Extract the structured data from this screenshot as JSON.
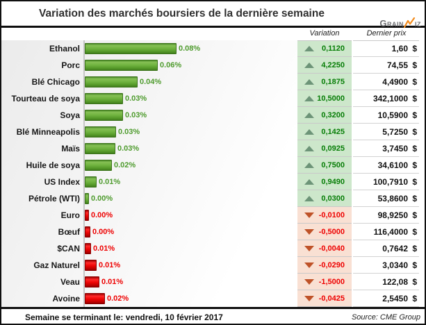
{
  "title": "Variation des marchés boursiers de la dernière semaine",
  "logo": {
    "text_left": "Grain",
    "text_right": "iz",
    "accent_color": "#F28C1E",
    "text_color": "#6D6E71"
  },
  "table": {
    "headers": {
      "variation": "Variation",
      "last_price": "Dernier prix"
    },
    "currency": "$"
  },
  "footer": {
    "left": "Semaine se terminant le: vendredi, 10 février 2017",
    "right": "Source: CME Group"
  },
  "colors": {
    "bar_up": "#6FB23F",
    "bar_down": "#EE0505",
    "pct_label_up": "#4E9B2D",
    "pct_label_down": "#EE0000",
    "cell_bg_up": "#CDE7CB",
    "cell_bg_down": "#F9E0D3",
    "up_arrow": "#6D9478",
    "down_arrow": "#BF5228",
    "variation_text_up": "#067D06",
    "variation_text_down": "#EE0000"
  },
  "chart_data": {
    "type": "bar",
    "orientation": "horizontal",
    "title": "Variation des marchés boursiers de la dernière semaine",
    "value_label_format": "percent",
    "columns": [
      "Variation",
      "Dernier prix"
    ],
    "rows": [
      {
        "category": "Ethanol",
        "bar_label": "0.08%",
        "pct_change": 7.53,
        "direction": "up",
        "variation": "0,1120",
        "last_price": "1,60"
      },
      {
        "category": "Porc",
        "bar_label": "0.06%",
        "pct_change": 6.01,
        "direction": "up",
        "variation": "4,2250",
        "last_price": "74,55"
      },
      {
        "category": "Blé Chicago",
        "bar_label": "0.04%",
        "pct_change": 4.36,
        "direction": "up",
        "variation": "0,1875",
        "last_price": "4,4900"
      },
      {
        "category": "Tourteau de soya",
        "bar_label": "0.03%",
        "pct_change": 3.17,
        "direction": "up",
        "variation": "10,5000",
        "last_price": "342,1000"
      },
      {
        "category": "Soya",
        "bar_label": "0.03%",
        "pct_change": 3.12,
        "direction": "up",
        "variation": "0,3200",
        "last_price": "10,5900"
      },
      {
        "category": "Blé Minneapolis",
        "bar_label": "0.03%",
        "pct_change": 2.55,
        "direction": "up",
        "variation": "0,1425",
        "last_price": "5,7250"
      },
      {
        "category": "Maïs",
        "bar_label": "0.03%",
        "pct_change": 2.53,
        "direction": "up",
        "variation": "0,0925",
        "last_price": "3,7450"
      },
      {
        "category": "Huile de soya",
        "bar_label": "0.02%",
        "pct_change": 2.21,
        "direction": "up",
        "variation": "0,7500",
        "last_price": "34,6100"
      },
      {
        "category": "US Index",
        "bar_label": "0.01%",
        "pct_change": 0.95,
        "direction": "up",
        "variation": "0,9490",
        "last_price": "100,7910"
      },
      {
        "category": "Pétrole (WTI)",
        "bar_label": "0.00%",
        "pct_change": 0.06,
        "direction": "up",
        "variation": "0,0300",
        "last_price": "53,8600"
      },
      {
        "category": "Euro",
        "bar_label": "0.00%",
        "pct_change": -0.01,
        "direction": "down",
        "variation": "-0,0100",
        "last_price": "98,9250"
      },
      {
        "category": "Bœuf",
        "bar_label": "0.00%",
        "pct_change": -0.43,
        "direction": "down",
        "variation": "-0,5000",
        "last_price": "116,4000"
      },
      {
        "category": "$CAN",
        "bar_label": "0.01%",
        "pct_change": -0.52,
        "direction": "down",
        "variation": "-0,0040",
        "last_price": "0,7642"
      },
      {
        "category": "Gaz Naturel",
        "bar_label": "0.01%",
        "pct_change": -0.95,
        "direction": "down",
        "variation": "-0,0290",
        "last_price": "3,0340"
      },
      {
        "category": "Veau",
        "bar_label": "0.01%",
        "pct_change": -1.21,
        "direction": "down",
        "variation": "-1,5000",
        "last_price": "122,08"
      },
      {
        "category": "Avoine",
        "bar_label": "0.02%",
        "pct_change": -1.64,
        "direction": "down",
        "variation": "-0,0425",
        "last_price": "2,5450"
      }
    ]
  }
}
